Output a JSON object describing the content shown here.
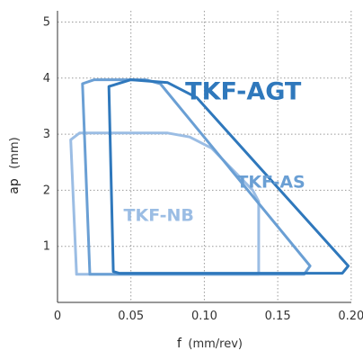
{
  "chart_data": {
    "type": "line",
    "xlabel": "f",
    "xlabel_unit": "(mm/rev)",
    "ylabel": "ap",
    "ylabel_unit": "(mm)",
    "xlim": [
      0,
      0.205
    ],
    "ylim": [
      0,
      5.2
    ],
    "x_ticks": [
      0,
      0.05,
      0.1,
      0.15,
      0.2
    ],
    "x_tick_labels": [
      "0",
      "0.05",
      "0.10",
      "0.15",
      "0.20"
    ],
    "y_ticks": [
      1,
      2,
      3,
      4,
      5
    ],
    "y_tick_labels": [
      "1",
      "2",
      "3",
      "4",
      "5"
    ],
    "grid": true,
    "series": [
      {
        "name": "TKF-AGT",
        "color": "#2f78bc",
        "points": [
          [
            0.038,
            0.55
          ],
          [
            0.035,
            3.85
          ],
          [
            0.05,
            3.97
          ],
          [
            0.075,
            3.92
          ],
          [
            0.095,
            3.65
          ],
          [
            0.198,
            0.65
          ],
          [
            0.194,
            0.52
          ],
          [
            0.042,
            0.52
          ]
        ]
      },
      {
        "name": "TKF-AS",
        "color": "#6a9fd4",
        "points": [
          [
            0.022,
            0.5
          ],
          [
            0.017,
            3.9
          ],
          [
            0.025,
            3.97
          ],
          [
            0.06,
            3.97
          ],
          [
            0.07,
            3.9
          ],
          [
            0.172,
            0.65
          ],
          [
            0.168,
            0.5
          ],
          [
            0.027,
            0.5
          ]
        ]
      },
      {
        "name": "TKF-NB",
        "color": "#9bbde4",
        "points": [
          [
            0.013,
            0.5
          ],
          [
            0.009,
            2.9
          ],
          [
            0.015,
            3.02
          ],
          [
            0.075,
            3.02
          ],
          [
            0.09,
            2.95
          ],
          [
            0.105,
            2.75
          ],
          [
            0.133,
            2.0
          ],
          [
            0.137,
            1.8
          ],
          [
            0.137,
            0.5
          ],
          [
            0.018,
            0.5
          ]
        ]
      }
    ],
    "annotations": [
      {
        "text": "TKF-AGT",
        "x": 0.087,
        "y": 3.62,
        "color": "#2f78bc",
        "size": "large"
      },
      {
        "text": "TKF-AS",
        "x": 0.122,
        "y": 2.05,
        "color": "#6a9fd4",
        "size": "medium"
      },
      {
        "text": "TKF-NB",
        "x": 0.045,
        "y": 1.45,
        "color": "#9bbde4",
        "size": "medium"
      }
    ]
  }
}
